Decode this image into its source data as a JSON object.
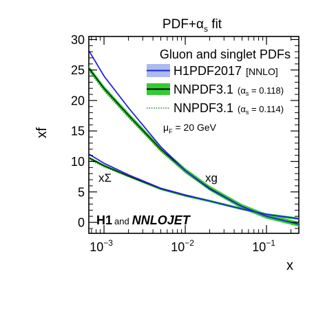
{
  "chart_data": {
    "type": "line",
    "title": "PDF+α",
    "title_sub": "s",
    "title_suffix": " fit",
    "xlabel": "x",
    "ylabel": "xf",
    "xscale": "log",
    "xlim": [
      0.00065,
      0.25
    ],
    "ylim": [
      -1.8,
      30.5
    ],
    "x_ticks": [
      {
        "value": 0.001,
        "base": "10",
        "exp": "−3"
      },
      {
        "value": 0.01,
        "base": "10",
        "exp": "−2"
      },
      {
        "value": 0.1,
        "base": "10",
        "exp": "−1"
      }
    ],
    "y_ticks": [
      0,
      5,
      10,
      15,
      20,
      25,
      30
    ],
    "y_tick_labels": [
      "0",
      "5",
      "10",
      "15",
      "20",
      "25",
      "30"
    ],
    "legend": {
      "placement": "top-right",
      "header": "Gluon and singlet PDFs",
      "entries": [
        {
          "label": "H1PDF2017",
          "note": "[NNLO]"
        },
        {
          "label": "NNPDF3.1",
          "note": "(α",
          "note_sub": "s",
          "note_suffix": " = 0.118)"
        },
        {
          "label": "NNPDF3.1",
          "note": "(α",
          "note_sub": "s",
          "note_suffix": " = 0.114)"
        }
      ]
    },
    "annotations": {
      "scale_label": "μ",
      "scale_sub": "F",
      "scale_value": " = 20 GeV",
      "singlet_label": "xΣ",
      "gluon_label": "xg",
      "footer_h1": "H1",
      "footer_and": "and",
      "footer_nnlojet": "NNLOJET"
    },
    "colors": {
      "h1": "#2222dd",
      "h1_band": "#aabbee",
      "nnpdf_118": "#33cc33",
      "nnpdf_114": "#228822",
      "label_gray": "#999999",
      "axis": "#000000"
    },
    "series": [
      {
        "name": "H1PDF2017",
        "pdf": "gluon",
        "x": [
          0.00065,
          0.001,
          0.002,
          0.005,
          0.01,
          0.02,
          0.05,
          0.1,
          0.25
        ],
        "y": [
          28.2,
          24.0,
          18.8,
          12.4,
          8.5,
          5.5,
          2.6,
          1.0,
          -0.3
        ]
      },
      {
        "name": "NNPDF3.1 (αs = 0.118)",
        "pdf": "gluon",
        "x": [
          0.00065,
          0.001,
          0.002,
          0.005,
          0.01,
          0.02,
          0.05,
          0.1,
          0.25
        ],
        "y": [
          25.3,
          22.0,
          17.6,
          12.0,
          8.5,
          5.6,
          2.6,
          1.0,
          -0.3
        ],
        "band": 0.4
      },
      {
        "name": "NNPDF3.1 (αs = 0.114)",
        "pdf": "gluon",
        "x": [
          0.00065,
          0.001,
          0.002,
          0.005,
          0.01,
          0.02,
          0.05,
          0.1,
          0.25
        ],
        "y": [
          24.9,
          21.6,
          17.2,
          11.7,
          8.2,
          5.4,
          2.5,
          1.0,
          -0.3
        ]
      },
      {
        "name": "H1PDF2017",
        "pdf": "singlet",
        "x": [
          0.00065,
          0.001,
          0.002,
          0.005,
          0.01,
          0.02,
          0.05,
          0.1,
          0.25
        ],
        "y": [
          11.2,
          9.7,
          7.8,
          5.6,
          4.5,
          3.5,
          2.2,
          1.3,
          0.6
        ]
      },
      {
        "name": "NNPDF3.1 (αs = 0.118)",
        "pdf": "singlet",
        "x": [
          0.00065,
          0.001,
          0.002,
          0.005,
          0.01,
          0.02,
          0.05,
          0.1,
          0.25
        ],
        "y": [
          10.6,
          9.3,
          7.6,
          5.5,
          4.4,
          3.5,
          2.2,
          1.3,
          0.6
        ],
        "band": 0.2
      },
      {
        "name": "NNPDF3.1 (αs = 0.114)",
        "pdf": "singlet",
        "x": [
          0.00065,
          0.001,
          0.002,
          0.005,
          0.01,
          0.02,
          0.05,
          0.1,
          0.25
        ],
        "y": [
          10.3,
          9.1,
          7.5,
          5.4,
          4.4,
          3.5,
          2.2,
          1.3,
          0.6
        ]
      }
    ]
  }
}
